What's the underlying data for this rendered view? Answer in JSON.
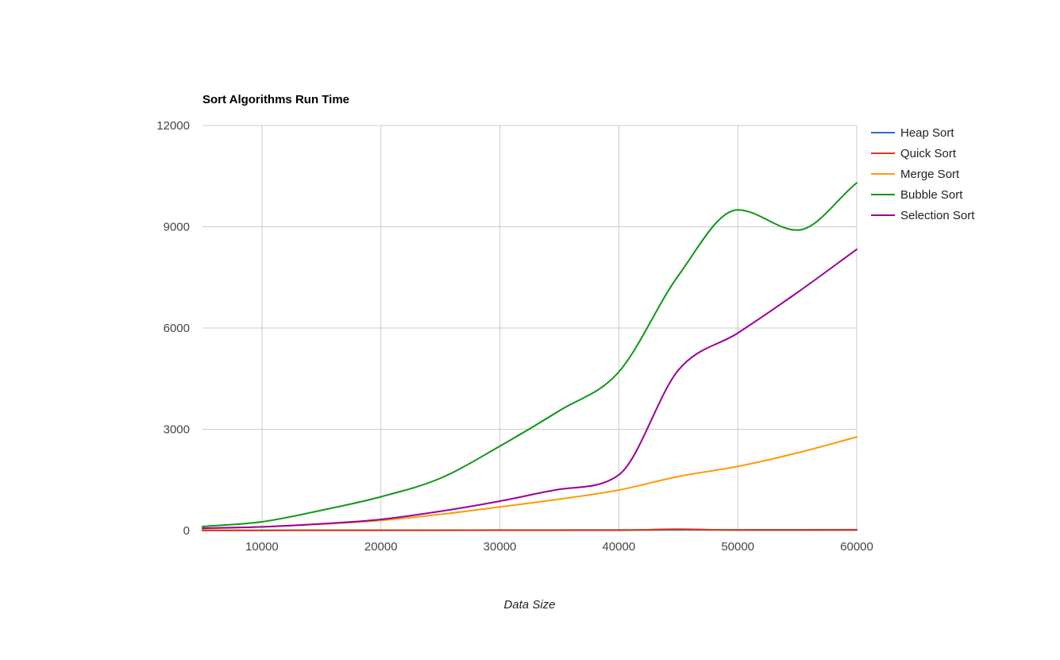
{
  "chart_data": {
    "type": "line",
    "title": "Sort Algorithms Run Time",
    "xlabel": "Data Size",
    "ylabel": "",
    "xlim": [
      5000,
      60000
    ],
    "ylim": [
      0,
      12000
    ],
    "x_ticks": [
      "10000",
      "20000",
      "30000",
      "40000",
      "50000",
      "60000"
    ],
    "y_ticks": [
      "0",
      "3000",
      "6000",
      "9000",
      "12000"
    ],
    "x_tick_values": [
      10000,
      20000,
      30000,
      40000,
      50000,
      60000
    ],
    "y_tick_values": [
      0,
      3000,
      6000,
      9000,
      12000
    ],
    "grid": true,
    "legend_position": "right",
    "curve": "smooth",
    "x": [
      5000,
      10000,
      15000,
      20000,
      25000,
      30000,
      35000,
      40000,
      45000,
      50000,
      55000,
      60000
    ],
    "series": [
      {
        "name": "Heap Sort",
        "color": "#3366cc",
        "values": [
          5,
          7,
          8,
          10,
          12,
          14,
          16,
          18,
          20,
          22,
          24,
          26
        ]
      },
      {
        "name": "Quick Sort",
        "color": "#dc3912",
        "values": [
          3,
          4,
          5,
          6,
          7,
          8,
          9,
          10,
          40,
          12,
          13,
          14
        ]
      },
      {
        "name": "Merge Sort",
        "color": "#ff9900",
        "values": [
          60,
          110,
          190,
          300,
          480,
          700,
          930,
          1200,
          1600,
          1900,
          2300,
          2770
        ]
      },
      {
        "name": "Bubble Sort",
        "color": "#109618",
        "values": [
          120,
          260,
          600,
          1000,
          1550,
          2500,
          3550,
          4700,
          7550,
          9500,
          8900,
          10300
        ]
      },
      {
        "name": "Selection Sort",
        "color": "#990099",
        "values": [
          70,
          110,
          200,
          330,
          570,
          870,
          1220,
          1650,
          4750,
          5850,
          7050,
          8330
        ]
      }
    ]
  }
}
